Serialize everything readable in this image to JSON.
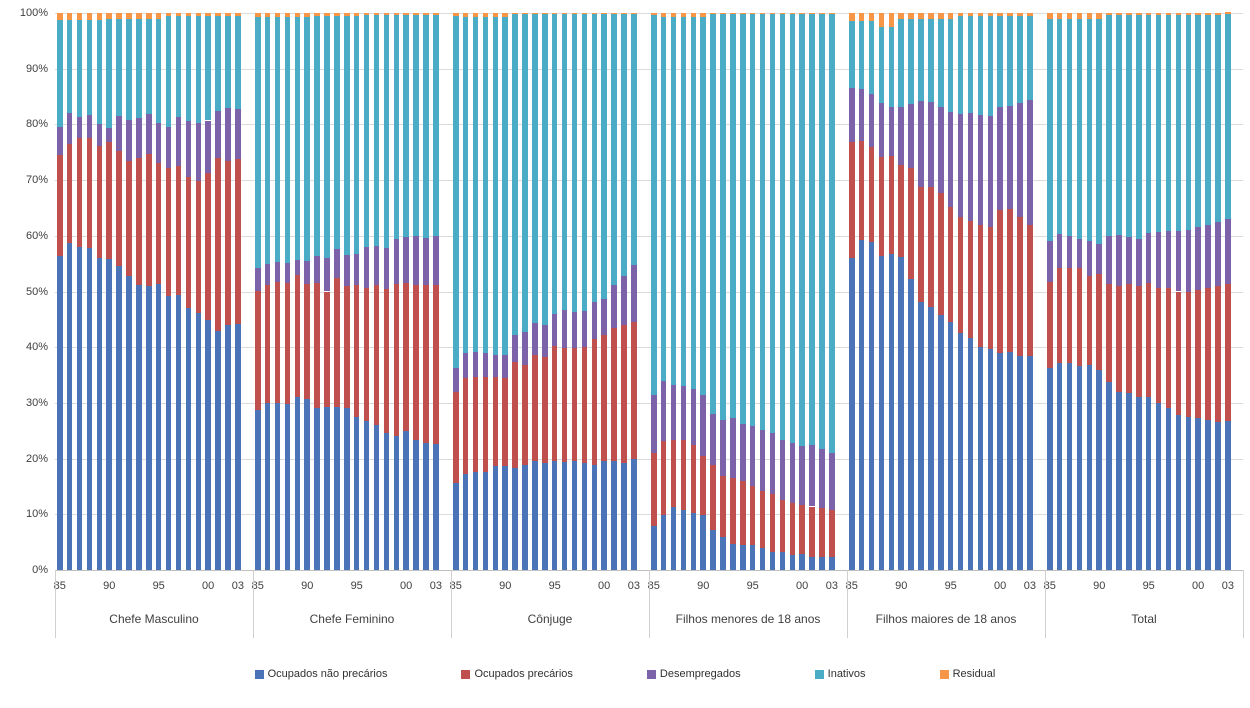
{
  "chart_data": {
    "type": "bar",
    "variant": "stacked-100-percent",
    "title": "",
    "xlabel": "",
    "ylabel": "",
    "grid": true,
    "legend_position": "bottom",
    "y_axis": {
      "min": 0,
      "max": 100,
      "tick_step": 10,
      "tick_labels": [
        "0%",
        "10%",
        "20%",
        "30%",
        "40%",
        "50%",
        "60%",
        "70%",
        "80%",
        "90%",
        "100%"
      ]
    },
    "x_years": [
      "85",
      "86",
      "87",
      "88",
      "89",
      "90",
      "91",
      "92",
      "93",
      "94",
      "95",
      "96",
      "97",
      "98",
      "99",
      "00",
      "01",
      "02",
      "03"
    ],
    "x_ticks_shown": [
      {
        "label": "85",
        "year_index": 0
      },
      {
        "label": "90",
        "year_index": 5
      },
      {
        "label": "95",
        "year_index": 10
      },
      {
        "label": "00",
        "year_index": 15
      },
      {
        "label": "03",
        "year_index": 18
      }
    ],
    "series_names": [
      "Ocupados não precários",
      "Ocupados precários",
      "Desempregados",
      "Inativos",
      "Residual"
    ],
    "series_colors": [
      "#4a73b8",
      "#c0504d",
      "#7c62a8",
      "#4bacc6",
      "#f79646"
    ],
    "groups": [
      {
        "label": "Chefe Masculino",
        "series": [
          [
            56.3,
            58.7,
            57.9,
            57.8,
            56.0,
            55.8,
            54.6,
            52.8,
            51.2,
            51.0,
            51.3,
            49.2,
            49.4,
            47.0,
            46.1,
            44.8,
            42.9,
            43.9,
            44.1
          ],
          [
            18.2,
            17.7,
            19.6,
            19.8,
            20.2,
            21.1,
            20.6,
            20.7,
            22.8,
            23.6,
            21.7,
            23.0,
            23.1,
            23.5,
            23.7,
            26.5,
            31.1,
            29.6,
            29.7
          ],
          [
            5.1,
            5.6,
            3.8,
            4.1,
            3.8,
            2.5,
            6.3,
            7.3,
            7.2,
            7.2,
            7.2,
            7.3,
            8.8,
            10.1,
            10.4,
            9.4,
            8.4,
            9.5,
            9.0
          ],
          [
            19.1,
            16.7,
            17.4,
            17.0,
            18.7,
            19.6,
            17.5,
            18.2,
            17.8,
            17.2,
            18.8,
            20.0,
            18.2,
            18.9,
            19.3,
            18.8,
            17.1,
            16.5,
            16.7
          ],
          [
            1.3,
            1.3,
            1.3,
            1.3,
            1.3,
            1.0,
            1.0,
            1.0,
            1.0,
            1.0,
            1.0,
            0.5,
            0.5,
            0.5,
            0.5,
            0.5,
            0.5,
            0.5,
            0.5
          ]
        ]
      },
      {
        "label": "Chefe Feminino",
        "series": [
          [
            28.7,
            29.9,
            29.9,
            29.8,
            31.0,
            30.7,
            29.0,
            29.2,
            29.3,
            29.0,
            27.5,
            26.8,
            26.1,
            24.6,
            24.0,
            25.0,
            23.4,
            22.8,
            22.6
          ],
          [
            21.4,
            21.3,
            21.8,
            21.7,
            21.9,
            20.6,
            22.5,
            20.8,
            23.1,
            21.9,
            23.7,
            23.9,
            25.1,
            25.9,
            27.3,
            26.5,
            27.8,
            28.3,
            28.6
          ],
          [
            4.1,
            3.7,
            3.6,
            3.6,
            2.8,
            4.1,
            4.8,
            6.0,
            5.2,
            5.7,
            5.5,
            7.2,
            6.9,
            7.3,
            8.2,
            8.2,
            8.7,
            8.5,
            8.7
          ],
          [
            45.0,
            44.3,
            43.9,
            44.1,
            43.5,
            43.8,
            43.2,
            43.5,
            41.9,
            42.9,
            42.8,
            41.8,
            41.6,
            41.9,
            40.2,
            40.0,
            39.8,
            40.1,
            39.8
          ],
          [
            0.8,
            0.8,
            0.8,
            0.8,
            0.8,
            0.8,
            0.5,
            0.5,
            0.5,
            0.5,
            0.5,
            0.3,
            0.3,
            0.3,
            0.3,
            0.3,
            0.3,
            0.3,
            0.3
          ]
        ]
      },
      {
        "label": "Cônjuge",
        "series": [
          [
            15.6,
            17.2,
            17.6,
            17.6,
            18.6,
            18.6,
            18.3,
            18.9,
            19.6,
            19.2,
            19.5,
            19.4,
            19.5,
            19.2,
            18.9,
            19.6,
            19.5,
            19.2,
            20.0
          ],
          [
            16.4,
            17.2,
            17.1,
            17.0,
            16.1,
            15.8,
            19.0,
            17.9,
            19.0,
            19.1,
            20.8,
            20.4,
            20.4,
            20.9,
            22.5,
            22.6,
            23.9,
            24.8,
            24.6
          ],
          [
            4.2,
            4.5,
            4.5,
            4.3,
            3.9,
            4.2,
            4.9,
            6.0,
            5.7,
            5.7,
            5.6,
            6.9,
            6.4,
            6.4,
            6.7,
            6.5,
            7.8,
            8.7,
            10.2
          ],
          [
            63.3,
            60.3,
            60.0,
            60.3,
            60.6,
            60.6,
            57.6,
            57.0,
            55.5,
            55.8,
            53.9,
            53.1,
            53.5,
            53.3,
            51.7,
            51.1,
            48.6,
            47.1,
            45.0
          ],
          [
            0.5,
            0.8,
            0.8,
            0.8,
            0.8,
            0.8,
            0.2,
            0.2,
            0.2,
            0.2,
            0.2,
            0.2,
            0.2,
            0.2,
            0.2,
            0.2,
            0.2,
            0.2,
            0.2
          ]
        ]
      },
      {
        "label": "Filhos menores de 18 anos",
        "series": [
          [
            7.9,
            9.9,
            11.3,
            10.8,
            10.3,
            9.9,
            7.2,
            5.9,
            4.7,
            4.4,
            4.5,
            3.9,
            3.3,
            3.2,
            2.7,
            2.8,
            2.4,
            2.3,
            2.3
          ],
          [
            13.1,
            13.2,
            12.0,
            12.6,
            12.2,
            10.6,
            11.7,
            10.9,
            11.8,
            11.5,
            10.5,
            10.2,
            10.3,
            9.4,
            9.3,
            8.9,
            9.0,
            8.8,
            8.5
          ],
          [
            10.5,
            10.9,
            9.9,
            9.6,
            10.0,
            11.0,
            9.1,
            10.2,
            10.7,
            10.4,
            10.9,
            11.1,
            11.0,
            10.8,
            10.8,
            10.5,
            11.1,
            10.6,
            10.2
          ],
          [
            68.2,
            65.2,
            66.0,
            66.2,
            66.7,
            67.7,
            71.8,
            72.8,
            72.6,
            73.5,
            73.9,
            74.6,
            75.2,
            76.4,
            77.0,
            77.6,
            77.3,
            78.1,
            78.8
          ],
          [
            0.3,
            0.8,
            0.8,
            0.8,
            0.8,
            0.8,
            0.2,
            0.2,
            0.2,
            0.2,
            0.2,
            0.2,
            0.2,
            0.2,
            0.2,
            0.2,
            0.2,
            0.2,
            0.2
          ]
        ]
      },
      {
        "label": "Filhos maiores de 18 anos",
        "series": [
          [
            56.0,
            59.3,
            58.9,
            56.3,
            56.7,
            56.2,
            52.3,
            48.1,
            47.3,
            45.7,
            44.6,
            42.5,
            41.6,
            40.0,
            39.7,
            38.9,
            39.2,
            38.5,
            38.5
          ],
          [
            20.9,
            17.8,
            17.0,
            17.8,
            17.6,
            16.5,
            19.8,
            20.7,
            21.4,
            21.9,
            20.6,
            20.8,
            21.1,
            21.9,
            21.9,
            25.7,
            25.7,
            24.9,
            23.4
          ],
          [
            9.6,
            9.3,
            9.6,
            9.7,
            8.8,
            10.4,
            11.6,
            15.4,
            15.4,
            15.5,
            17.1,
            18.6,
            19.4,
            19.8,
            19.9,
            18.6,
            18.4,
            20.4,
            22.5
          ],
          [
            12.0,
            12.1,
            13.0,
            13.7,
            14.4,
            15.9,
            15.3,
            14.8,
            14.9,
            15.9,
            16.7,
            17.6,
            17.4,
            17.8,
            18.0,
            16.3,
            16.2,
            15.7,
            15.1
          ],
          [
            1.5,
            1.5,
            1.5,
            2.5,
            2.5,
            1.0,
            1.0,
            1.0,
            1.0,
            1.0,
            1.0,
            0.5,
            0.5,
            0.5,
            0.5,
            0.5,
            0.5,
            0.5,
            0.5
          ]
        ]
      },
      {
        "label": "Total",
        "series": [
          [
            36.2,
            37.1,
            37.2,
            36.6,
            36.8,
            35.9,
            33.8,
            32.0,
            31.7,
            31.1,
            31.1,
            29.9,
            29.0,
            27.8,
            27.5,
            27.2,
            27.0,
            26.6,
            26.8
          ],
          [
            15.5,
            17.2,
            17.0,
            17.7,
            15.9,
            17.2,
            17.5,
            18.9,
            19.6,
            19.8,
            20.4,
            20.8,
            21.6,
            22.2,
            22.4,
            23.1,
            23.6,
            24.3,
            24.5
          ],
          [
            7.4,
            6.0,
            5.7,
            5.2,
            6.3,
            5.4,
            8.6,
            9.2,
            8.4,
            8.6,
            9.0,
            10.0,
            10.2,
            10.9,
            11.2,
            11.2,
            11.4,
            11.6,
            11.7
          ],
          [
            39.9,
            38.7,
            39.1,
            39.5,
            40.0,
            40.5,
            39.8,
            39.6,
            40.0,
            40.2,
            39.2,
            39.0,
            38.9,
            38.8,
            38.6,
            38.2,
            37.7,
            37.2,
            36.9
          ],
          [
            1.0,
            1.0,
            1.0,
            1.0,
            1.0,
            1.0,
            0.3,
            0.3,
            0.3,
            0.3,
            0.3,
            0.3,
            0.3,
            0.3,
            0.3,
            0.3,
            0.3,
            0.3,
            0.3
          ]
        ]
      }
    ],
    "legend": [
      {
        "label": "Ocupados não precários",
        "color": "#4a73b8"
      },
      {
        "label": "Ocupados precários",
        "color": "#c0504d"
      },
      {
        "label": "Desempregados",
        "color": "#7c62a8"
      },
      {
        "label": "Inativos",
        "color": "#4bacc6"
      },
      {
        "label": "Residual",
        "color": "#f79646"
      }
    ]
  }
}
